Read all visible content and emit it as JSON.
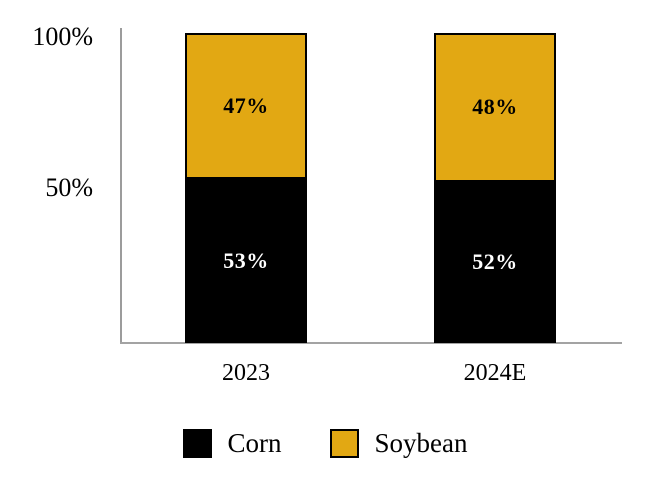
{
  "chart_data": {
    "type": "bar",
    "stacked": true,
    "categories": [
      "2023",
      "2024E"
    ],
    "series": [
      {
        "name": "Corn",
        "color": "#000000",
        "label_color": "#ffffff",
        "values": [
          53,
          52
        ]
      },
      {
        "name": "Soybean",
        "color": "#e2a813",
        "label_color": "#000000",
        "values": [
          47,
          48
        ]
      }
    ],
    "value_suffix": "%",
    "yticks": [
      "100%",
      "50%"
    ],
    "ylim": [
      0,
      100
    ],
    "grid": false,
    "legend_position": "bottom",
    "axis_color": "#9c9c9c",
    "background": "#ffffff",
    "title": ""
  }
}
